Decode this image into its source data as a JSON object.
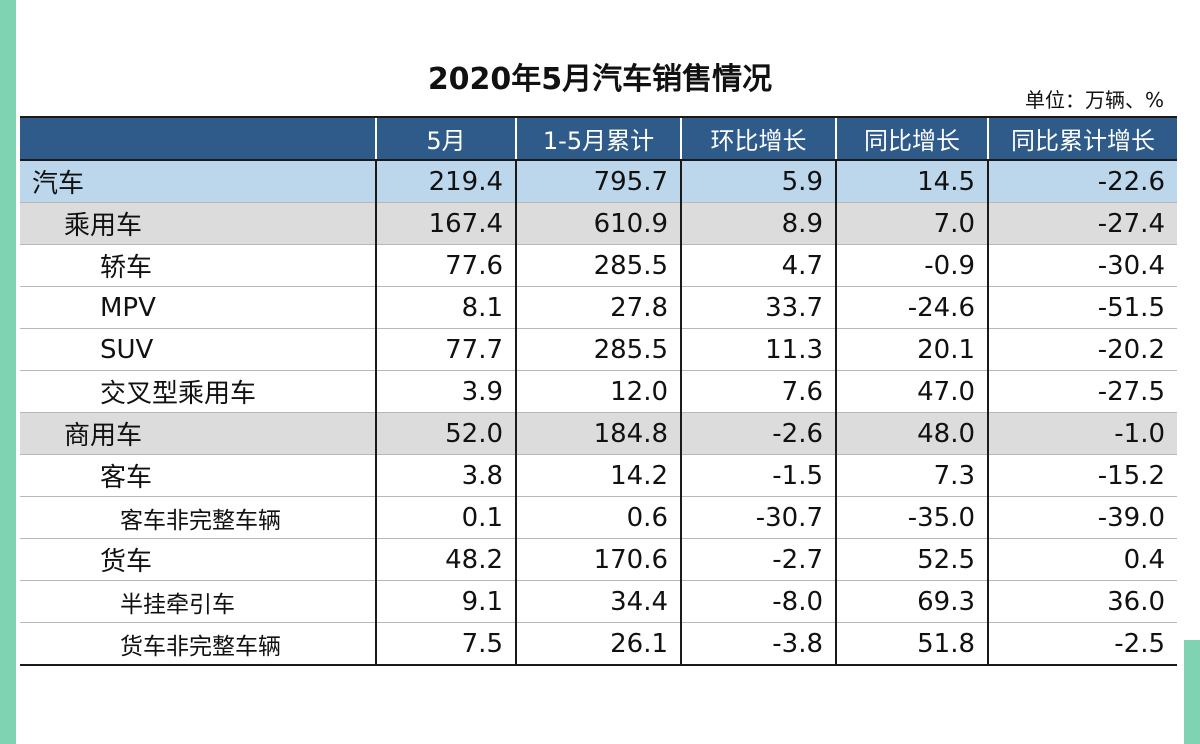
{
  "title": "2020年5月汽车销售情况",
  "unit": "单位：万辆、%",
  "table": {
    "headers": [
      "",
      "5月",
      "1-5月累计",
      "环比增长",
      "同比增长",
      "同比累计增长"
    ],
    "rows": [
      {
        "name": "汽车",
        "level": 0,
        "values": [
          "219.4",
          "795.7",
          "5.9",
          "14.5",
          "-22.6"
        ]
      },
      {
        "name": "乘用车",
        "level": 1,
        "values": [
          "167.4",
          "610.9",
          "8.9",
          "7.0",
          "-27.4"
        ]
      },
      {
        "name": "轿车",
        "level": 2,
        "values": [
          "77.6",
          "285.5",
          "4.7",
          "-0.9",
          "-30.4"
        ]
      },
      {
        "name": "MPV",
        "level": 2,
        "values": [
          "8.1",
          "27.8",
          "33.7",
          "-24.6",
          "-51.5"
        ]
      },
      {
        "name": "SUV",
        "level": 2,
        "values": [
          "77.7",
          "285.5",
          "11.3",
          "20.1",
          "-20.2"
        ]
      },
      {
        "name": "交叉型乘用车",
        "level": 2,
        "values": [
          "3.9",
          "12.0",
          "7.6",
          "47.0",
          "-27.5"
        ]
      },
      {
        "name": "商用车",
        "level": 1,
        "values": [
          "52.0",
          "184.8",
          "-2.6",
          "48.0",
          "-1.0"
        ]
      },
      {
        "name": "客车",
        "level": 2,
        "values": [
          "3.8",
          "14.2",
          "-1.5",
          "7.3",
          "-15.2"
        ]
      },
      {
        "name": "客车非完整车辆",
        "level": 3,
        "values": [
          "0.1",
          "0.6",
          "-30.7",
          "-35.0",
          "-39.0"
        ]
      },
      {
        "name": "货车",
        "level": 2,
        "values": [
          "48.2",
          "170.6",
          "-2.7",
          "52.5",
          "0.4"
        ]
      },
      {
        "name": "半挂牵引车",
        "level": 3,
        "values": [
          "9.1",
          "34.4",
          "-8.0",
          "69.3",
          "36.0"
        ]
      },
      {
        "name": "货车非完整车辆",
        "level": 3,
        "values": [
          "7.5",
          "26.1",
          "-3.8",
          "51.8",
          "-2.5"
        ]
      }
    ]
  },
  "colors": {
    "header_bg": "#2e5b89",
    "total_row_bg": "#bcd6ec",
    "category_row_bg": "#dcdcdc",
    "edge_accent": "#7fd3b3"
  }
}
